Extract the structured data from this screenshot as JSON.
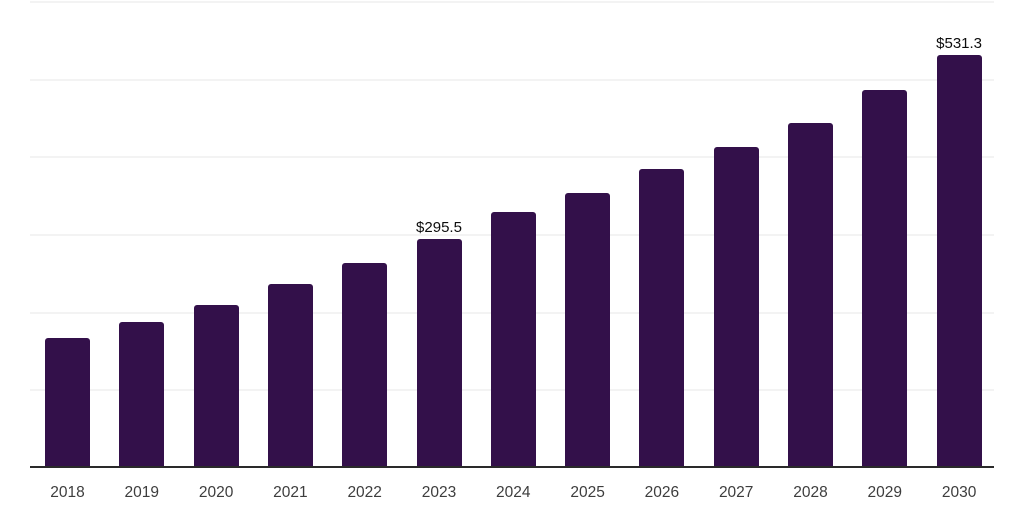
{
  "chart_data": {
    "type": "bar",
    "title": "",
    "xlabel": "",
    "ylabel": "",
    "categories": [
      "2018",
      "2019",
      "2020",
      "2021",
      "2022",
      "2023",
      "2024",
      "2025",
      "2026",
      "2027",
      "2028",
      "2029",
      "2030"
    ],
    "values": [
      167,
      188,
      210,
      237,
      264,
      295.5,
      330,
      354,
      385,
      413,
      444,
      487,
      531.3
    ],
    "data_labels": [
      {
        "category": "2023",
        "text": "$295.5"
      },
      {
        "category": "2030",
        "text": "$531.3"
      }
    ],
    "ylim": [
      0,
      600
    ],
    "grid": {
      "visible": true,
      "step": 100,
      "color": "#f3f3f3"
    },
    "legend": "none",
    "colors": {
      "bar": "#33104a",
      "axis_line": "#2a2a2a",
      "tick_label": "#3d3d3d",
      "data_label": "#0d0d0d",
      "background": "#ffffff"
    }
  }
}
